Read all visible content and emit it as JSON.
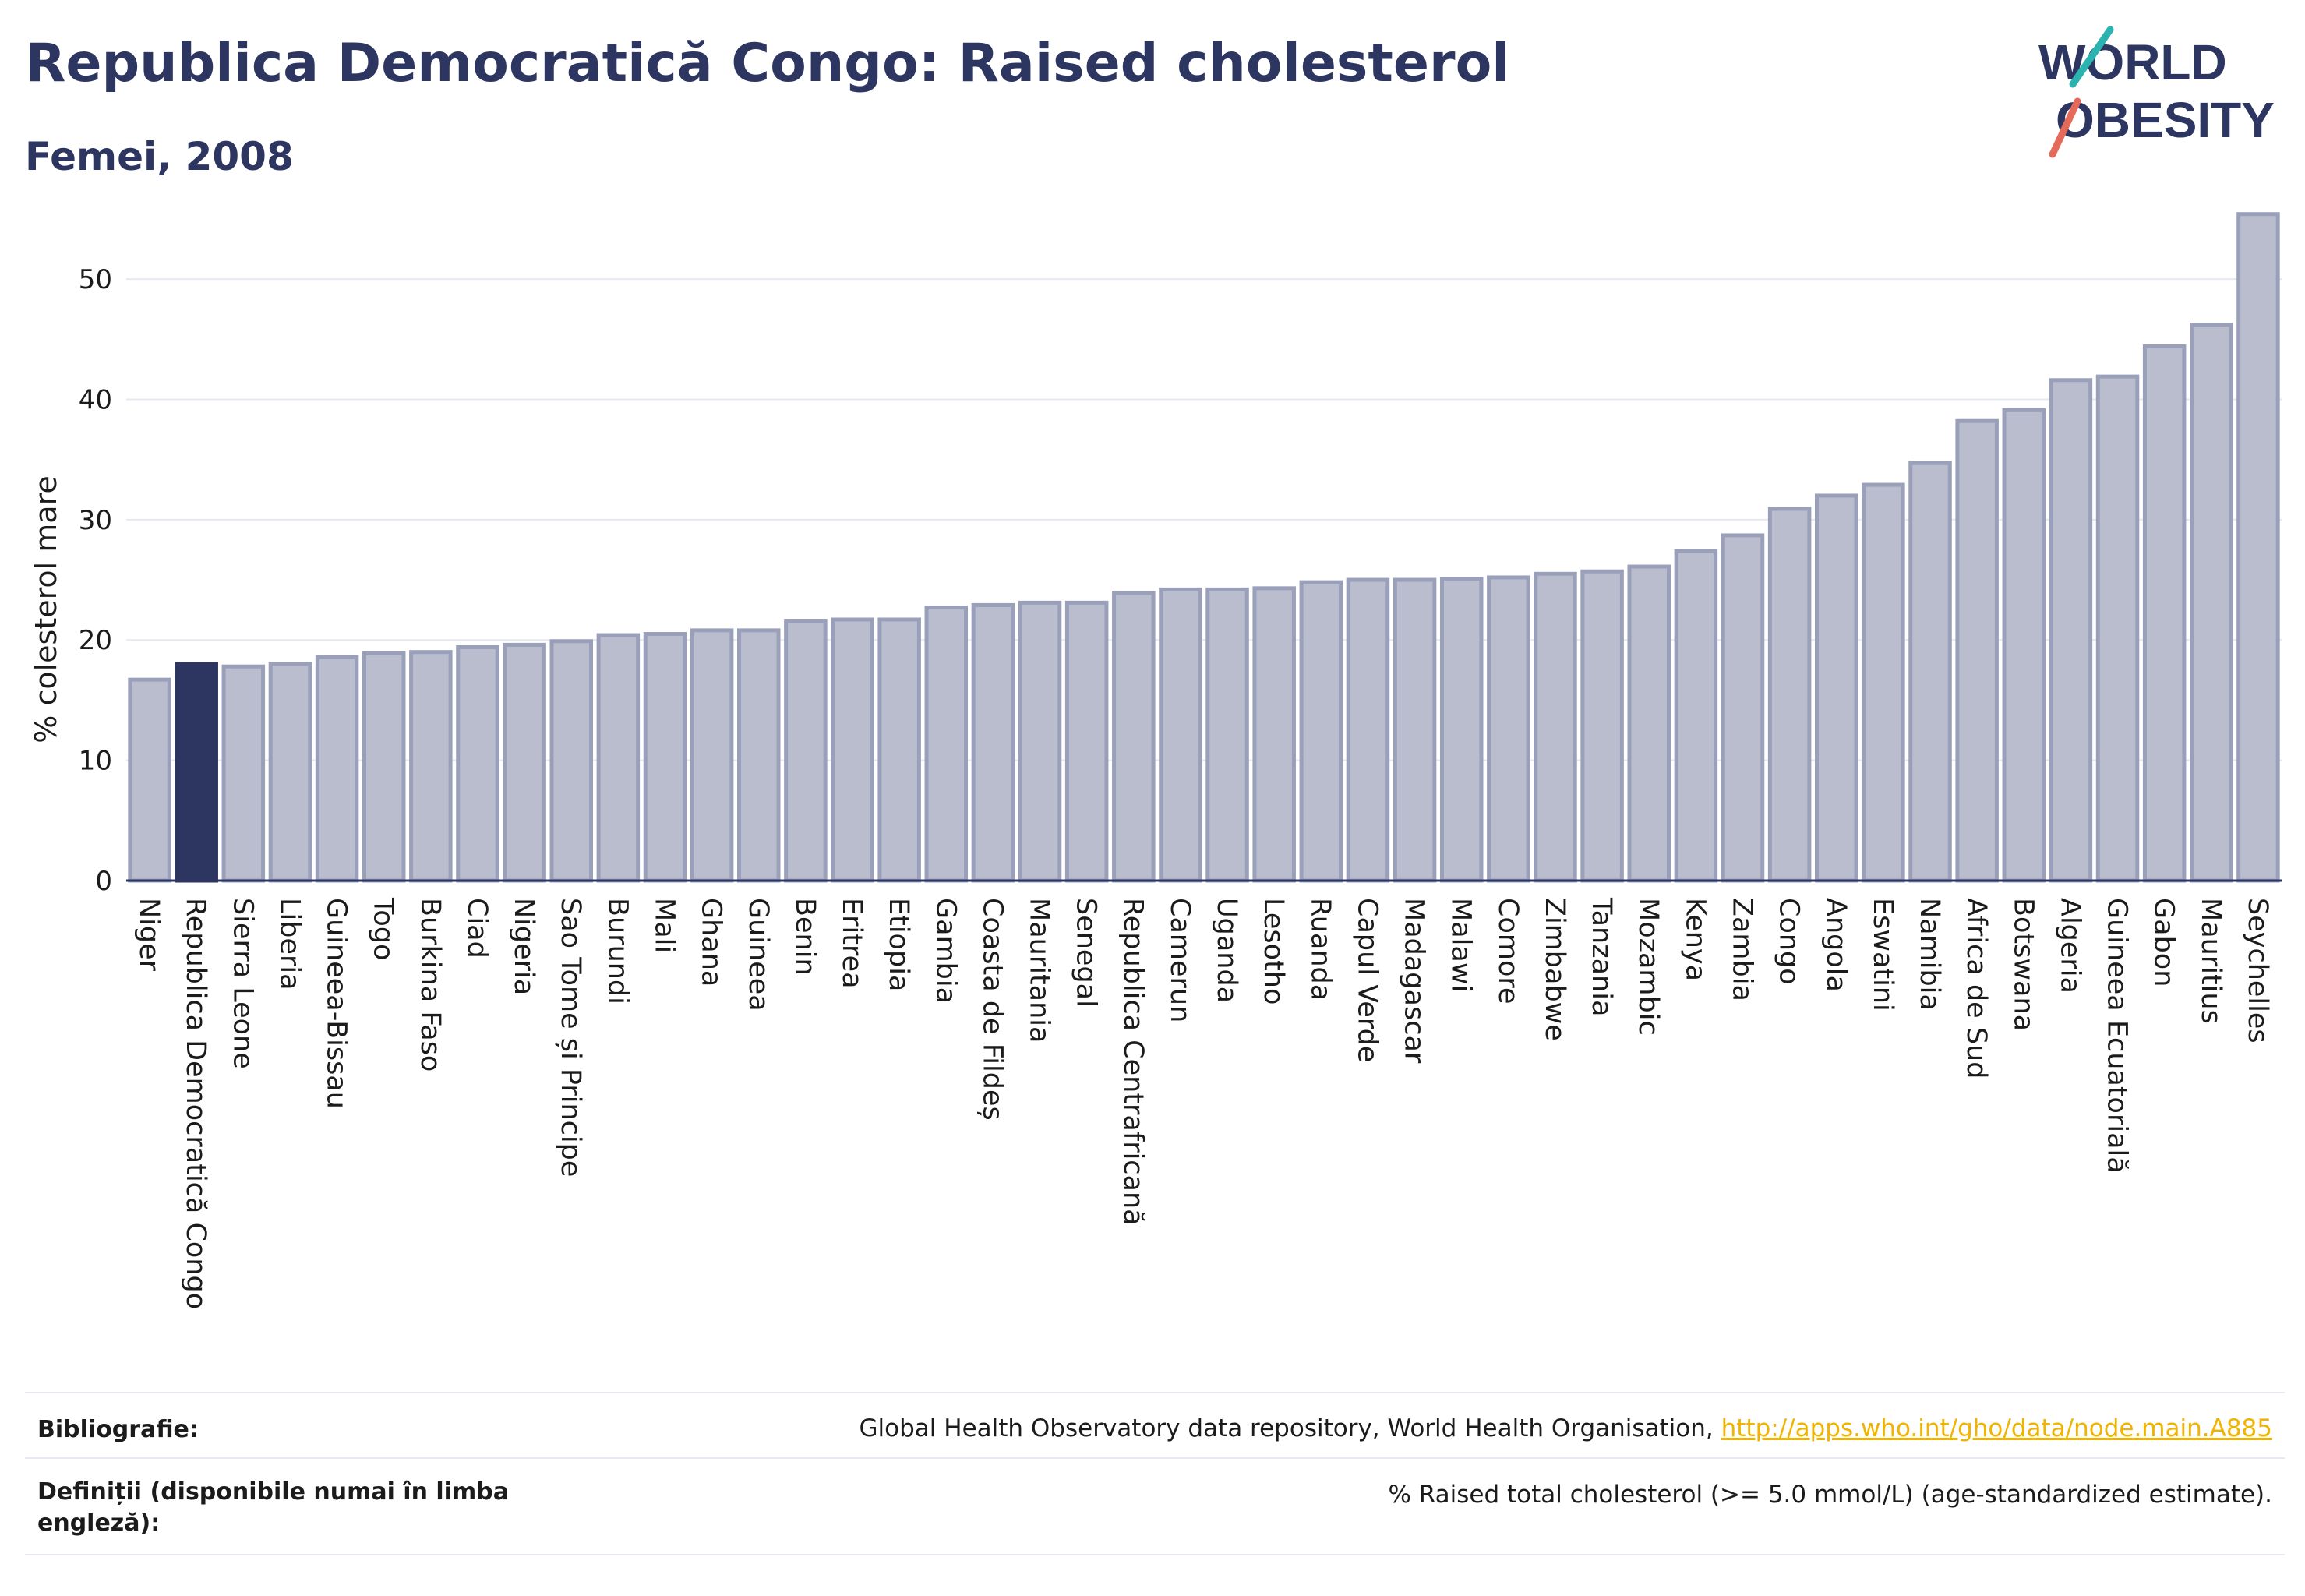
{
  "title": "Republica Democratică Congo: Raised cholesterol",
  "subtitle": "Femei, 2008",
  "logo": {
    "line1": "WORLD",
    "line2": "OBESITY"
  },
  "colors": {
    "bar": "#b9bdcd",
    "bar_border": "#9aa0b9",
    "highlight": "#2d3561",
    "grid": "#e6e9f1",
    "text": "#1b1b1b"
  },
  "footer": {
    "bibliography_label": "Bibliografie:",
    "bibliography_text": "Global Health Observatory data repository, World Health Organisation,",
    "bibliography_link": "http://apps.who.int/gho/data/node.main.A885",
    "definitions_label": "Definiții (disponibile numai în limba engleză):",
    "definitions_text": "% Raised total cholesterol (>= 5.0 mmol/L) (age-standardized estimate)."
  },
  "chart_data": {
    "type": "bar",
    "ylabel": "% colesterol mare",
    "ylim": [
      0,
      57
    ],
    "yticks": [
      0,
      10,
      20,
      30,
      40,
      50
    ],
    "grid": true,
    "highlight": "Republica Democratică Congo",
    "categories": [
      "Niger",
      "Republica Democratică Congo",
      "Sierra Leone",
      "Liberia",
      "Guineea-Bissau",
      "Togo",
      "Burkina Faso",
      "Ciad",
      "Nigeria",
      "Sao Tome și Principe",
      "Burundi",
      "Mali",
      "Ghana",
      "Guineea",
      "Benin",
      "Eritrea",
      "Etiopia",
      "Gambia",
      "Coasta de Fildeș",
      "Mauritania",
      "Senegal",
      "Republica Centrafricană",
      "Camerun",
      "Uganda",
      "Lesotho",
      "Ruanda",
      "Capul Verde",
      "Madagascar",
      "Malawi",
      "Comore",
      "Zimbabwe",
      "Tanzania",
      "Mozambic",
      "Kenya",
      "Zambia",
      "Congo",
      "Angola",
      "Eswatini",
      "Namibia",
      "Africa de Sud",
      "Botswana",
      "Algeria",
      "Guineea Ecuatorială",
      "Gabon",
      "Mauritius",
      "Seychelles"
    ],
    "values": [
      16.7,
      18.0,
      17.8,
      18.0,
      18.6,
      18.9,
      19.0,
      19.4,
      19.6,
      19.9,
      20.4,
      20.5,
      20.8,
      20.8,
      21.6,
      21.7,
      21.7,
      22.7,
      22.9,
      23.1,
      23.1,
      23.9,
      24.2,
      24.2,
      24.3,
      24.8,
      25.0,
      25.0,
      25.1,
      25.2,
      25.5,
      25.7,
      26.1,
      27.4,
      28.7,
      30.9,
      32.0,
      32.9,
      34.7,
      38.2,
      39.1,
      41.6,
      41.9,
      44.4,
      46.2,
      55.4
    ]
  }
}
